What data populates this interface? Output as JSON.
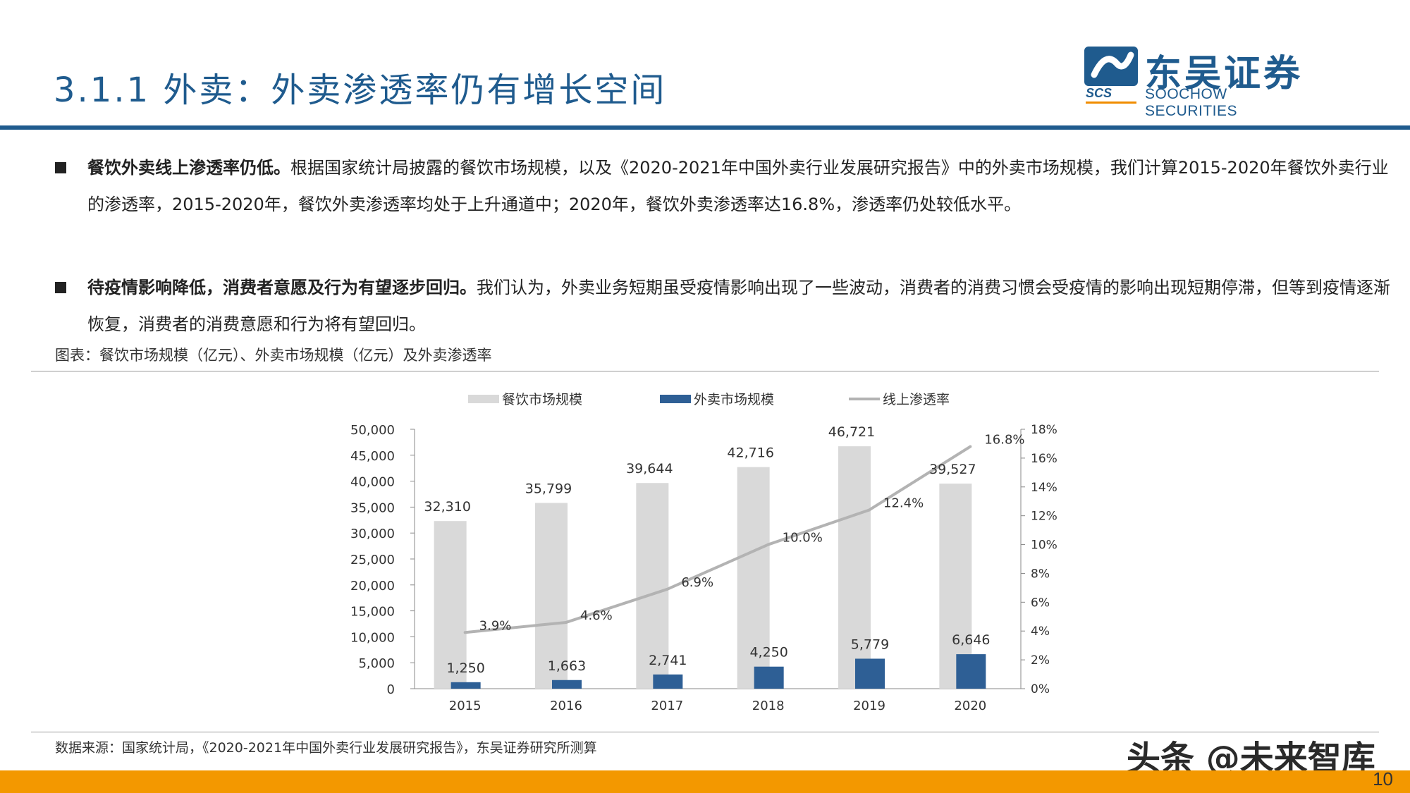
{
  "header": {
    "title": "3.1.1 外卖：外卖渗透率仍有增长空间",
    "logo_cn": "东吴证券",
    "logo_en": "SOOCHOW SECURITIES",
    "logo_abbr": "SCS"
  },
  "bullets": [
    {
      "bold": "餐饮外卖线上渗透率仍低。",
      "text": "根据国家统计局披露的餐饮市场规模，以及《2020-2021年中国外卖行业发展研究报告》中的外卖市场规模，我们计算2015-2020年餐饮外卖行业的渗透率，2015-2020年，餐饮外卖渗透率均处于上升通道中；2020年，餐饮外卖渗透率达16.8%，渗透率仍处较低水平。"
    },
    {
      "bold": "待疫情影响降低，消费者意愿及行为有望逐步回归。",
      "text": "我们认为，外卖业务短期虽受疫情影响出现了一些波动，消费者的消费习惯会受疫情的影响出现短期停滞，但等到疫情逐渐恢复，消费者的消费意愿和行为将有望回归。"
    }
  ],
  "figure_caption": "图表：餐饮市场规模（亿元）、外卖市场规模（亿元）及外卖渗透率",
  "source": "数据来源：国家统计局，《2020-2021年中国外卖行业发展研究报告》，东吴证券研究所测算",
  "watermark": "头条 @未来智库",
  "page_number": "10",
  "colors": {
    "brand": "#1f5b8e",
    "accent": "#f39800",
    "bar_restaurant": "#d9d9d9",
    "bar_delivery": "#2e5f95",
    "line_penetration": "#b3b3b3"
  },
  "chart_data": {
    "type": "bar",
    "categories": [
      "2015",
      "2016",
      "2017",
      "2018",
      "2019",
      "2020"
    ],
    "series": [
      {
        "name": "餐饮市场规模",
        "kind": "bar",
        "axis": "left",
        "values": [
          32310,
          35799,
          39644,
          42716,
          46721,
          39527
        ],
        "labels": [
          "32,310",
          "35,799",
          "39,644",
          "42,716",
          "46,721",
          "39,527"
        ]
      },
      {
        "name": "外卖市场规模",
        "kind": "bar",
        "axis": "left",
        "values": [
          1250,
          1663,
          2741,
          4250,
          5779,
          6646
        ],
        "labels": [
          "1,250",
          "1,663",
          "2,741",
          "4,250",
          "5,779",
          "6,646"
        ]
      },
      {
        "name": "线上渗透率",
        "kind": "line",
        "axis": "right",
        "values": [
          3.9,
          4.6,
          6.9,
          10.0,
          12.4,
          16.8
        ],
        "labels": [
          "3.9%",
          "4.6%",
          "6.9%",
          "10.0%",
          "12.4%",
          "16.8%"
        ]
      }
    ],
    "y_left": {
      "range": [
        0,
        50000
      ],
      "ticks": [
        "0",
        "5,000",
        "10,000",
        "15,000",
        "20,000",
        "25,000",
        "30,000",
        "35,000",
        "40,000",
        "45,000",
        "50,000"
      ]
    },
    "y_right": {
      "range": [
        0,
        18
      ],
      "ticks": [
        "0%",
        "2%",
        "4%",
        "6%",
        "8%",
        "10%",
        "12%",
        "14%",
        "16%",
        "18%"
      ]
    },
    "legend_position": "top-center",
    "grid": false
  }
}
